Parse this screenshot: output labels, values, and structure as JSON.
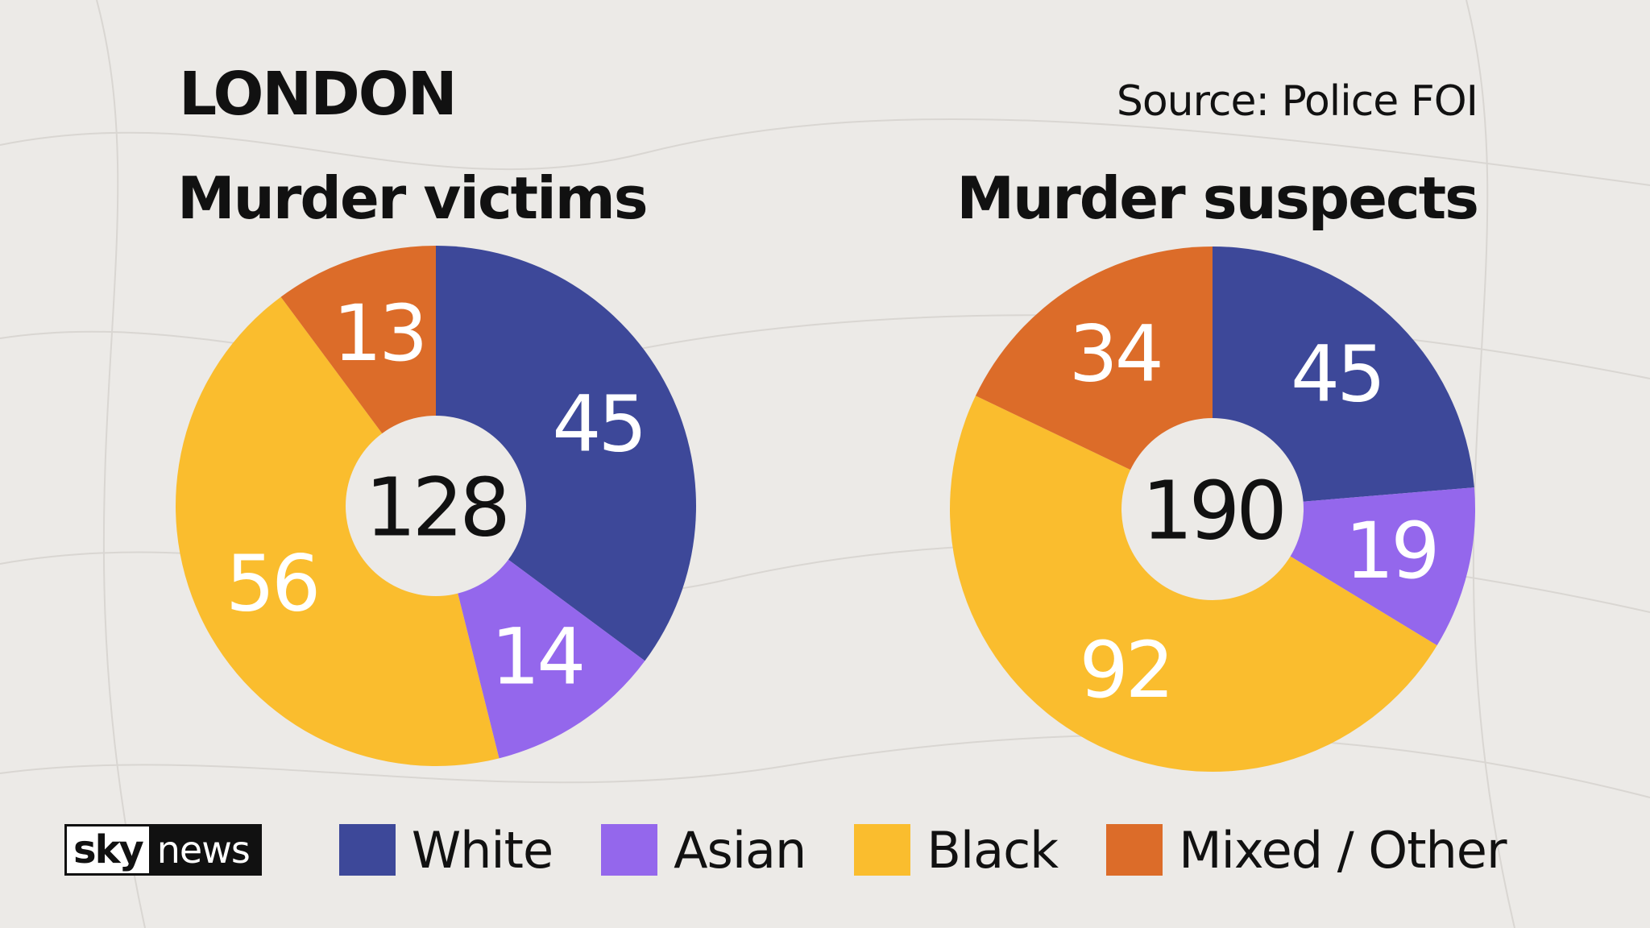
{
  "header": {
    "title": "LONDON",
    "source": "Source: Police FOI"
  },
  "colors": {
    "background": "#eceae7",
    "White": "#3d4899",
    "Asian": "#9467ec",
    "Black": "#fabd2e",
    "Mixed / Other": "#dc6c29",
    "label_text": "#ffffff",
    "center_text": "#111111"
  },
  "legend": {
    "logo": {
      "sky": "sky",
      "news": "news"
    },
    "items": [
      {
        "label": "White",
        "color": "#3d4899"
      },
      {
        "label": "Asian",
        "color": "#9467ec"
      },
      {
        "label": "Black",
        "color": "#fabd2e"
      },
      {
        "label": "Mixed / Other",
        "color": "#dc6c29"
      }
    ]
  },
  "chart_data": [
    {
      "type": "pie",
      "donut": true,
      "title": "Murder victims",
      "total": "128",
      "categories": [
        "White",
        "Asian",
        "Black",
        "Mixed / Other"
      ],
      "values": [
        45,
        14,
        56,
        13
      ],
      "labels": [
        "45",
        "14",
        "56",
        "13"
      ]
    },
    {
      "type": "pie",
      "donut": true,
      "title": "Murder suspects",
      "total": "190",
      "categories": [
        "White",
        "Asian",
        "Black",
        "Mixed / Other"
      ],
      "values": [
        45,
        19,
        92,
        34
      ],
      "labels": [
        "45",
        "19",
        "92",
        "34"
      ]
    }
  ]
}
